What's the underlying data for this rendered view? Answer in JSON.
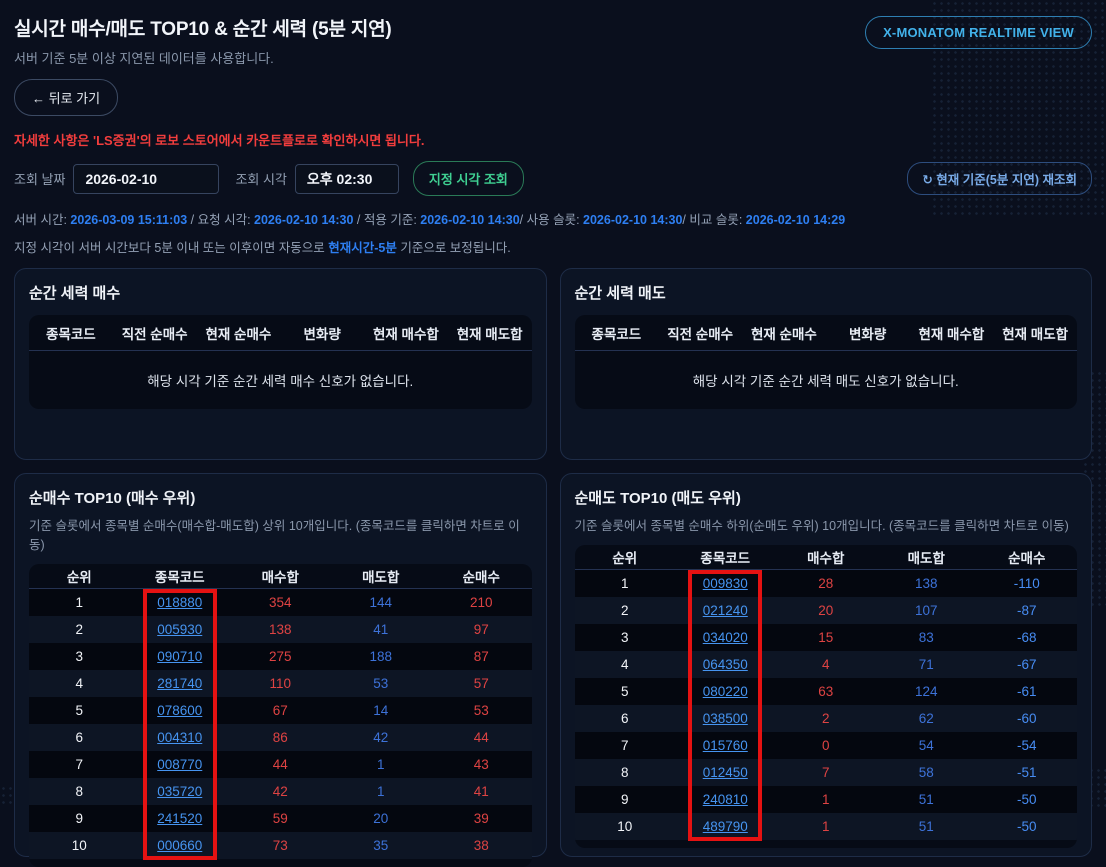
{
  "page": {
    "title": "실시간 매수/매도 TOP10 & 순간 세력 (5분 지연)",
    "subtitle": "서버 기준 5분 이상 지연된 데이터를 사용합니다.",
    "back_button": "← 뒤로 가기",
    "realtime_view_button": "X-MONATOM REALTIME VIEW",
    "notice": "자세한 사항은 'LS증권'의 로보 스토어에서 카운트플로로 확인하시면 됩니다.",
    "refresh_icon": "↻",
    "refresh_button": "현재 기준(5분 지연) 재조회"
  },
  "query": {
    "date_label": "조회 날짜",
    "date_value": "2026-02-10",
    "time_label": "조회 시각",
    "time_value": "오후 02:30",
    "submit_button": "지정 시각 조회"
  },
  "server_info": {
    "items": [
      {
        "label": "서버 시간:",
        "value": "2026-03-09 15:11:03",
        "sep": " / "
      },
      {
        "label": "요청 시각:",
        "value": "2026-02-10 14:30",
        "sep": " / "
      },
      {
        "label": "적용 기준:",
        "value": "2026-02-10 14:30",
        "sep": "/ "
      },
      {
        "label": "사용 슬롯:",
        "value": "2026-02-10 14:30",
        "sep": "/ "
      },
      {
        "label": "비교 슬롯:",
        "value": "2026-02-10 14:29",
        "sep": ""
      }
    ],
    "hint_prefix": "지정 시각이 서버 시간보다 5분 이내 또는 이후이면 자동으로 ",
    "hint_highlight": "현재시간-5분",
    "hint_suffix": " 기준으로 보정됩니다."
  },
  "momentum_buy_panel": {
    "title": "순간 세력 매수",
    "headers": [
      "종목코드",
      "직전 순매수",
      "현재 순매수",
      "변화량",
      "현재 매수합",
      "현재 매도합"
    ],
    "empty_message": "해당 시각 기준 순간 세력 매수 신호가 없습니다."
  },
  "momentum_sell_panel": {
    "title": "순간 세력 매도",
    "headers": [
      "종목코드",
      "직전 순매수",
      "현재 순매수",
      "변화량",
      "현재 매수합",
      "현재 매도합"
    ],
    "empty_message": "해당 시각 기준 순간 세력 매도 신호가 없습니다."
  },
  "top_buy_panel": {
    "title": "순매수 TOP10 (매수 우위)",
    "description": "기준 슬롯에서 종목별 순매수(매수합-매도합) 상위 10개입니다. (종목코드를 클릭하면 차트로 이동)",
    "headers": [
      "순위",
      "종목코드",
      "매수합",
      "매도합",
      "순매수"
    ],
    "rows": [
      {
        "rank": 1,
        "code": "018880",
        "buy": 354,
        "sell": 144,
        "net": 210
      },
      {
        "rank": 2,
        "code": "005930",
        "buy": 138,
        "sell": 41,
        "net": 97
      },
      {
        "rank": 3,
        "code": "090710",
        "buy": 275,
        "sell": 188,
        "net": 87
      },
      {
        "rank": 4,
        "code": "281740",
        "buy": 110,
        "sell": 53,
        "net": 57
      },
      {
        "rank": 5,
        "code": "078600",
        "buy": 67,
        "sell": 14,
        "net": 53
      },
      {
        "rank": 6,
        "code": "004310",
        "buy": 86,
        "sell": 42,
        "net": 44
      },
      {
        "rank": 7,
        "code": "008770",
        "buy": 44,
        "sell": 1,
        "net": 43
      },
      {
        "rank": 8,
        "code": "035720",
        "buy": 42,
        "sell": 1,
        "net": 41
      },
      {
        "rank": 9,
        "code": "241520",
        "buy": 59,
        "sell": 20,
        "net": 39
      },
      {
        "rank": 10,
        "code": "000660",
        "buy": 73,
        "sell": 35,
        "net": 38
      }
    ]
  },
  "top_sell_panel": {
    "title": "순매도 TOP10 (매도 우위)",
    "description": "기준 슬롯에서 종목별 순매수 하위(순매도 우위) 10개입니다. (종목코드를 클릭하면 차트로 이동)",
    "headers": [
      "순위",
      "종목코드",
      "매수합",
      "매도합",
      "순매수"
    ],
    "rows": [
      {
        "rank": 1,
        "code": "009830",
        "buy": 28,
        "sell": 138,
        "net": -110
      },
      {
        "rank": 2,
        "code": "021240",
        "buy": 20,
        "sell": 107,
        "net": -87
      },
      {
        "rank": 3,
        "code": "034020",
        "buy": 15,
        "sell": 83,
        "net": -68
      },
      {
        "rank": 4,
        "code": "064350",
        "buy": 4,
        "sell": 71,
        "net": -67
      },
      {
        "rank": 5,
        "code": "080220",
        "buy": 63,
        "sell": 124,
        "net": -61
      },
      {
        "rank": 6,
        "code": "038500",
        "buy": 2,
        "sell": 62,
        "net": -60
      },
      {
        "rank": 7,
        "code": "015760",
        "buy": 0,
        "sell": 54,
        "net": -54
      },
      {
        "rank": 8,
        "code": "012450",
        "buy": 7,
        "sell": 58,
        "net": -51
      },
      {
        "rank": 9,
        "code": "240810",
        "buy": 1,
        "sell": 51,
        "net": -50
      },
      {
        "rank": 10,
        "code": "489790",
        "buy": 1,
        "sell": 51,
        "net": -50
      }
    ]
  },
  "annotations": {
    "highlight_color": "#e51212",
    "target": "stock-code-column"
  },
  "colors": {
    "page_bg": "#0a0f1d",
    "panel_bg": "#0c1424",
    "table_bg": "#060b16",
    "accent_blue": "#2e7ff2",
    "link_blue": "#4694f0",
    "value_red": "#de4343",
    "value_blue": "#3d72d8",
    "notice_red": "#f23d3d",
    "green_button": "#3fd092",
    "cyan_button": "#42b2ea"
  }
}
